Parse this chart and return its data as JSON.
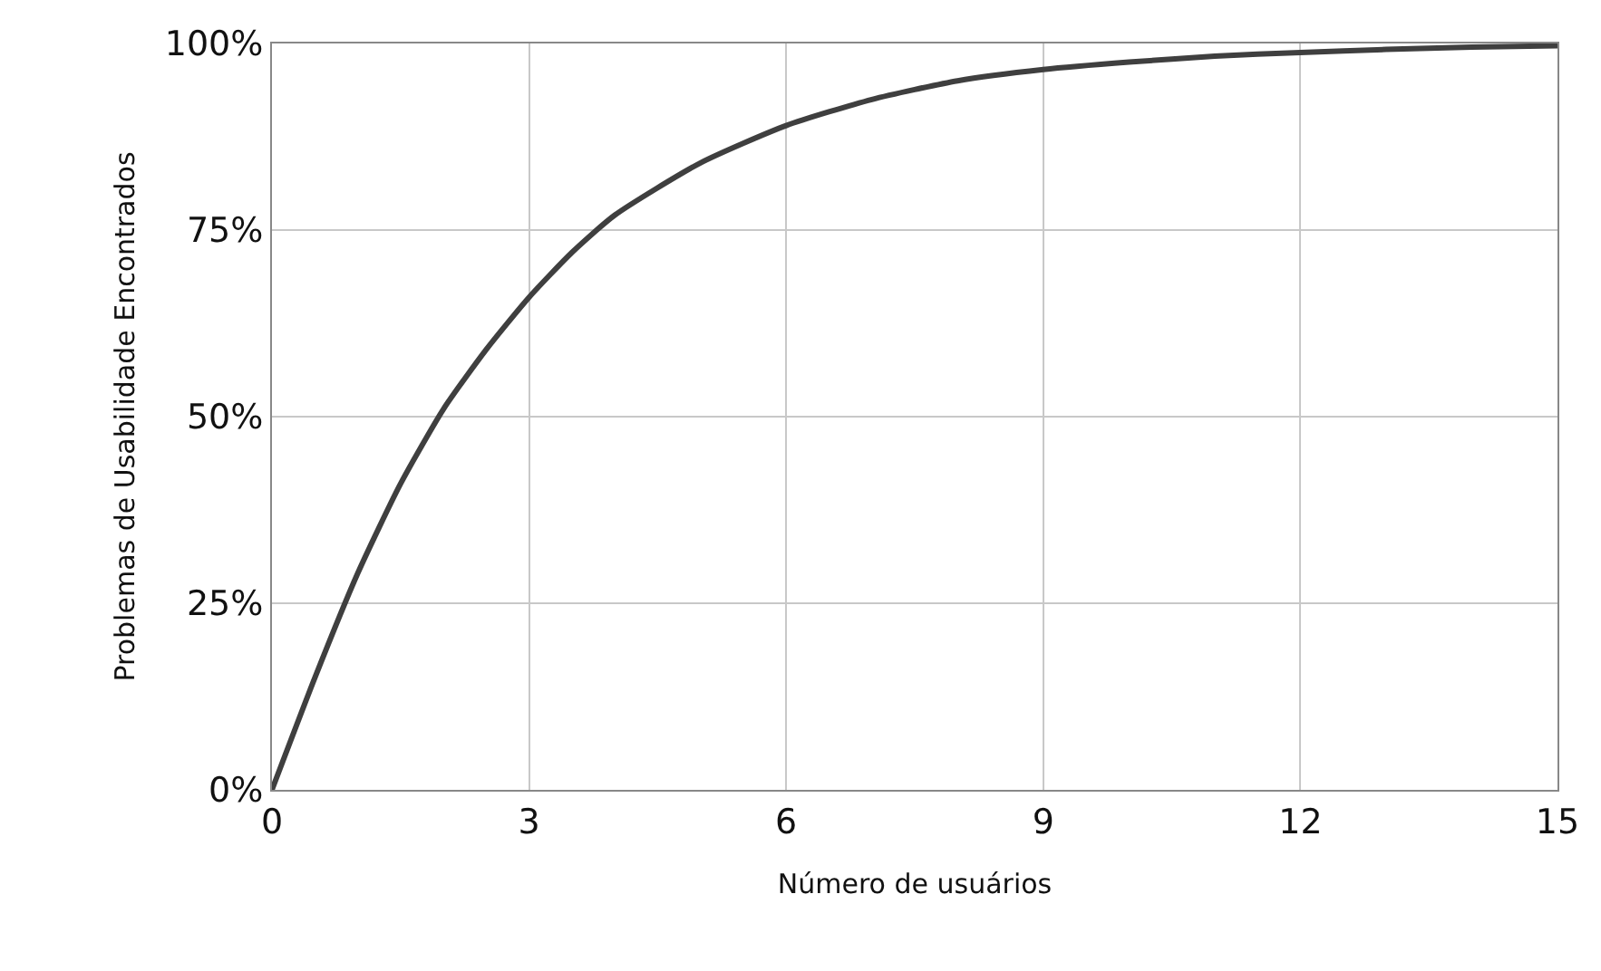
{
  "chart_data": {
    "type": "line",
    "xlabel": "Número de usuários",
    "ylabel": "Problemas de Usabilidade Encontrados",
    "x": [
      0,
      0.5,
      1,
      1.5,
      2,
      2.5,
      3,
      3.5,
      4,
      5,
      6,
      7,
      8,
      9,
      10,
      11,
      12,
      13,
      14,
      15
    ],
    "series": [
      {
        "color": "#3f3f3f",
        "values": [
          0,
          15,
          29,
          41,
          51,
          59,
          66,
          72,
          77,
          84,
          89,
          92.5,
          95,
          96.5,
          97.5,
          98.3,
          98.8,
          99.2,
          99.5,
          99.7
        ]
      }
    ],
    "xlim": [
      0,
      15
    ],
    "xticks": [
      0,
      3,
      6,
      9,
      12,
      15
    ],
    "ylim": [
      0,
      100
    ],
    "yticks": [
      {
        "value": 0,
        "label": "0%"
      },
      {
        "value": 25,
        "label": "25%"
      },
      {
        "value": 50,
        "label": "50%"
      },
      {
        "value": 75,
        "label": "75%"
      },
      {
        "value": 100,
        "label": "100%"
      }
    ],
    "grid": true,
    "marker": "none",
    "line_style": "solid"
  }
}
